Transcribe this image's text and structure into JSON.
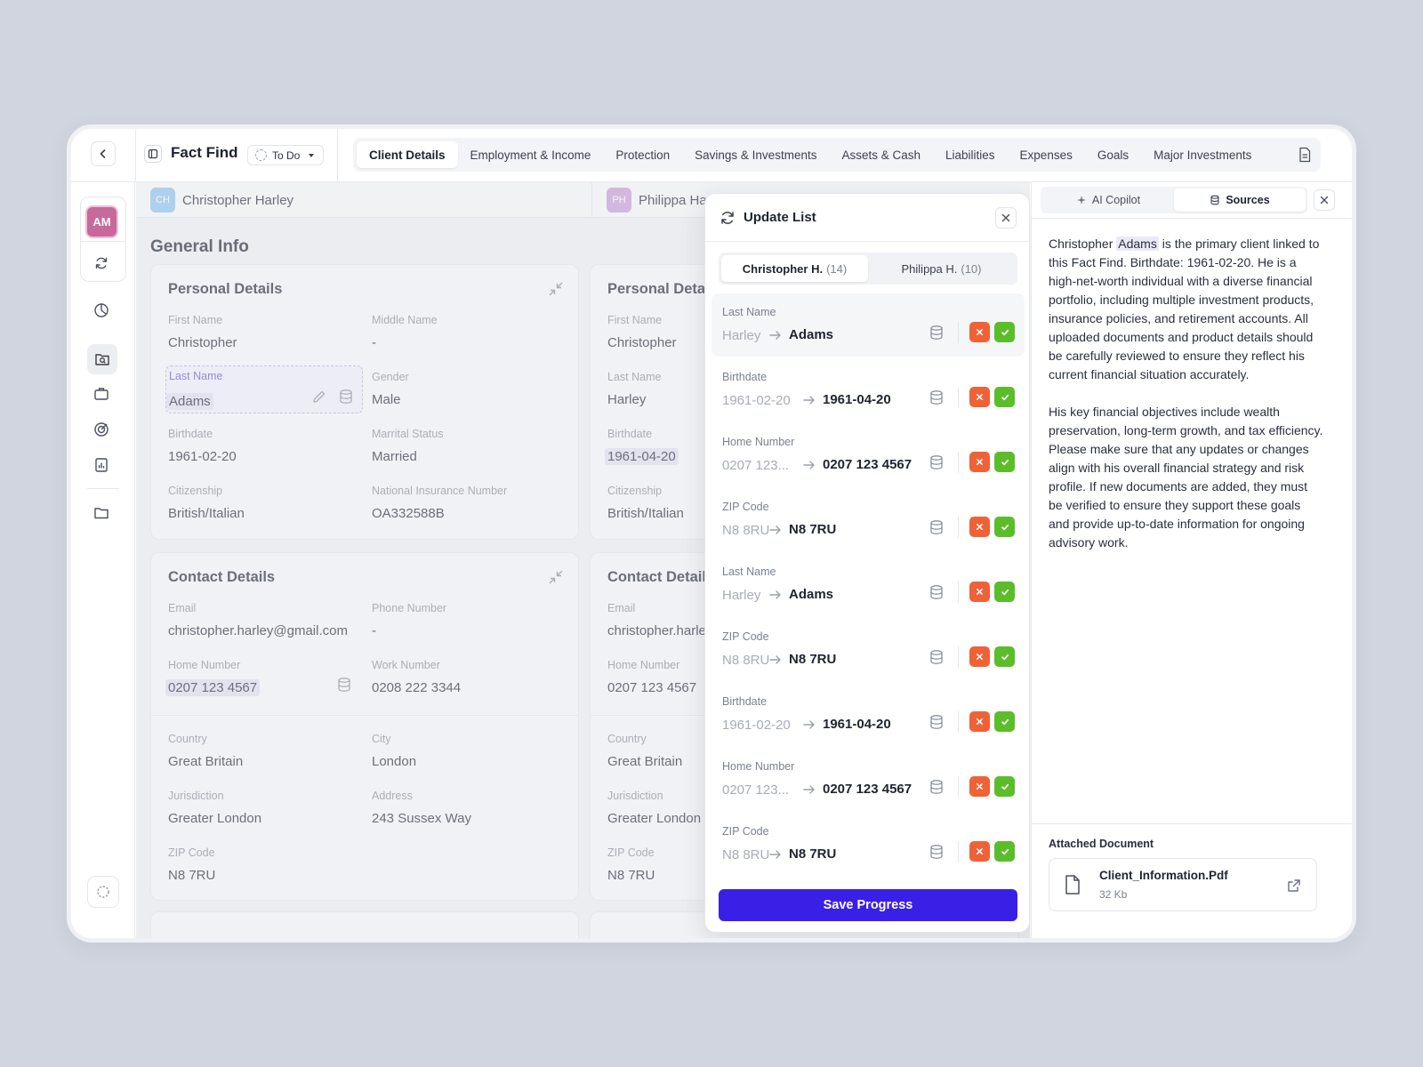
{
  "header": {
    "title": "Fact Find",
    "status": "To Do",
    "tabs": [
      {
        "label": "Client Details"
      },
      {
        "label": "Employment & Income"
      },
      {
        "label": "Protection"
      },
      {
        "label": "Savings & Investments"
      },
      {
        "label": "Assets & Cash"
      },
      {
        "label": "Liabilities"
      },
      {
        "label": "Expenses"
      },
      {
        "label": "Goals"
      },
      {
        "label": "Major Investments"
      }
    ]
  },
  "rail": {
    "avatar_initials": "AM"
  },
  "clients": [
    {
      "initials": "CH",
      "name": "Christopher Harley"
    },
    {
      "initials": "PH",
      "name": "Philippa Harley"
    }
  ],
  "section_title": "General Info",
  "left": {
    "personal": {
      "title": "Personal Details",
      "first_name": {
        "label": "First Name",
        "value": "Christopher"
      },
      "middle_name": {
        "label": "Middle Name",
        "value": "-"
      },
      "last_name": {
        "label": "Last Name",
        "value": "Adams"
      },
      "gender": {
        "label": "Gender",
        "value": "Male"
      },
      "birthdate": {
        "label": "Birthdate",
        "value": "1961-02-20"
      },
      "marital": {
        "label": "Marrital Status",
        "value": "Married"
      },
      "citizenship": {
        "label": "Citizenship",
        "value": "British/Italian"
      },
      "nin": {
        "label": "National Insurance Number",
        "value": "OA332588B"
      }
    },
    "contact": {
      "title": "Contact Details",
      "email": {
        "label": "Email",
        "value": "christopher.harley@gmail.com"
      },
      "phone": {
        "label": "Phone Number",
        "value": "-"
      },
      "home": {
        "label": "Home Number",
        "value": "0207 123 4567"
      },
      "work": {
        "label": "Work Number",
        "value": "0208 222 3344"
      },
      "country": {
        "label": "Country",
        "value": "Great Britain"
      },
      "city": {
        "label": "City",
        "value": "London"
      },
      "jurisdiction": {
        "label": "Jurisdiction",
        "value": "Greater London"
      },
      "address": {
        "label": "Address",
        "value": "243 Sussex Way"
      },
      "zip": {
        "label": "ZIP Code",
        "value": "N8 7RU"
      }
    }
  },
  "right": {
    "personal": {
      "title": "Personal Details",
      "first_name": {
        "label": "First Name",
        "value": "Christopher"
      },
      "last_name": {
        "label": "Last Name",
        "value": "Harley"
      },
      "birthdate": {
        "label": "Birthdate",
        "value": "1961-04-20"
      },
      "citizenship": {
        "label": "Citizenship",
        "value": "British/Italian"
      }
    },
    "contact": {
      "title": "Contact Details",
      "email": {
        "label": "Email",
        "value": "christopher.harley@gmail.com"
      },
      "home": {
        "label": "Home Number",
        "value": "0207 123 4567"
      },
      "country": {
        "label": "Country",
        "value": "Great Britain"
      },
      "jurisdiction": {
        "label": "Jurisdiction",
        "value": "Greater London"
      },
      "zip": {
        "label": "ZIP Code",
        "value": "N8 7RU"
      }
    }
  },
  "popover": {
    "title": "Update List",
    "segments": [
      {
        "label": "Christopher H.",
        "count": "(14)"
      },
      {
        "label": "Philippa H.",
        "count": "(10)"
      }
    ],
    "rows": [
      {
        "label": "Last Name",
        "old": "Harley",
        "new": "Adams"
      },
      {
        "label": "Birthdate",
        "old": "1961-02-20",
        "new": "1961-04-20"
      },
      {
        "label": "Home Number",
        "old": "0207 123...",
        "new": "0207 123 4567"
      },
      {
        "label": "ZIP Code",
        "old": "N8 8RU",
        "new": "N8 7RU"
      },
      {
        "label": "Last Name",
        "old": "Harley",
        "new": "Adams"
      },
      {
        "label": "ZIP Code",
        "old": "N8 8RU",
        "new": "N8 7RU"
      },
      {
        "label": "Birthdate",
        "old": "1961-02-20",
        "new": "1961-04-20"
      },
      {
        "label": "Home Number",
        "old": "0207 123...",
        "new": "0207 123 4567"
      },
      {
        "label": "ZIP Code",
        "old": "N8 8RU",
        "new": "N8 7RU"
      }
    ],
    "save_label": "Save Progress"
  },
  "side": {
    "tabs": [
      {
        "label": "AI Copilot"
      },
      {
        "label": "Sources"
      }
    ],
    "para1_a": "Christopher ",
    "para1_mark": "Adams",
    "para1_b": " is the primary client linked to this Fact Find. Birthdate: 1961-02-20. He is a high-net-worth individual with a diverse financial portfolio, including multiple investment products, insurance policies, and retirement accounts. All uploaded documents and product details should be carefully reviewed to ensure they reflect his current financial situation accurately.",
    "para2": "His key financial objectives include wealth preservation, long-term growth, and tax efficiency. Please make sure that any updates or changes align with his overall financial strategy and risk profile. If new documents are added, they must be verified to ensure they support these goals and provide up-to-date information for ongoing advisory work.",
    "attach_title": "Attached Document",
    "file_name": "Client_Information.Pdf",
    "file_size": "32 Kb"
  },
  "colors": {
    "accent": "#3a1fe6",
    "reject": "#ef6237",
    "accept": "#5bbd2a",
    "avatar": "#c7699b"
  },
  "icons": [
    "chevron-left-icon",
    "panel-icon",
    "document-icon",
    "refresh-icon",
    "chart-pie-icon",
    "search-doc-icon",
    "briefcase-icon",
    "target-icon",
    "report-icon",
    "folder-icon",
    "loader-icon",
    "collapse-icon",
    "pencil-icon",
    "database-icon",
    "close-icon",
    "check-icon",
    "arrow-right-icon",
    "sparkle-icon",
    "file-icon",
    "external-link-icon"
  ]
}
